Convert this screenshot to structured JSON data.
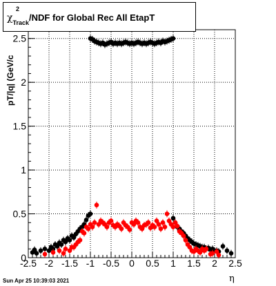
{
  "title_parts": {
    "chi": "χ",
    "sup": "2",
    "sub": "Track",
    "rest": "/NDF for Global Rec All EtapT"
  },
  "footer": {
    "date": "Sun Apr 25 10:39:03 2021"
  },
  "chart_data": {
    "type": "scatter",
    "title": "χ2Track/NDF for Global Rec All EtapT",
    "xlabel": "η",
    "ylabel": "pT/|q| (GeV/c",
    "xlim": [
      -2.5,
      2.5
    ],
    "ylim": [
      0,
      2.6
    ],
    "grid": true,
    "xticks": [
      -2.5,
      -2,
      -1.5,
      -1,
      -0.5,
      0,
      0.5,
      1,
      1.5,
      2,
      2.5
    ],
    "xtick_labels": [
      "-2.5",
      "-2",
      "-1.5",
      "-1",
      "-0.5",
      "0",
      "0.5",
      "1",
      "1.5",
      "2",
      "2.5"
    ],
    "yticks": [
      0,
      0.5,
      1,
      1.5,
      2,
      2.5
    ],
    "ytick_labels": [
      "0",
      "0.5",
      "1",
      "1.5",
      "2",
      "2.5"
    ],
    "series": [
      {
        "color": "#000000",
        "x": [
          -2.4,
          -2.35,
          -2.3,
          -2.2,
          -2.1,
          -2.0,
          -1.95,
          -1.9,
          -1.85,
          -1.8,
          -1.75,
          -1.7,
          -1.65,
          -1.6,
          -1.55,
          -1.5,
          -1.45,
          -1.4,
          -1.35,
          -1.3,
          -1.25,
          -1.2,
          -1.15,
          -1.1,
          -1.05,
          -1.0,
          -1.0,
          -0.95,
          -0.9,
          -0.85,
          -0.8,
          -0.75,
          -0.7,
          -0.65,
          -0.6,
          -0.55,
          -0.5,
          -0.45,
          -0.4,
          -0.35,
          -0.3,
          -0.25,
          -0.2,
          -0.15,
          -0.1,
          -0.05,
          0.0,
          0.05,
          0.1,
          0.15,
          0.2,
          0.25,
          0.3,
          0.35,
          0.4,
          0.45,
          0.5,
          0.55,
          0.6,
          0.65,
          0.7,
          0.75,
          0.8,
          0.85,
          0.9,
          0.95,
          1.0,
          1.0,
          1.05,
          1.1,
          1.15,
          1.2,
          1.25,
          1.3,
          1.35,
          1.4,
          1.45,
          1.5,
          1.55,
          1.6,
          1.65,
          1.7,
          1.75,
          1.8,
          1.85,
          1.9,
          1.95,
          2.0,
          2.05,
          2.1,
          2.2,
          2.3,
          2.4
        ],
        "y": [
          0.06,
          0.09,
          0.05,
          0.08,
          0.1,
          0.08,
          0.12,
          0.1,
          0.15,
          0.13,
          0.17,
          0.15,
          0.2,
          0.18,
          0.22,
          0.2,
          0.25,
          0.23,
          0.27,
          0.3,
          0.33,
          0.35,
          0.38,
          0.43,
          0.48,
          0.5,
          2.5,
          2.49,
          2.47,
          2.46,
          2.45,
          2.44,
          2.45,
          2.43,
          2.44,
          2.45,
          2.46,
          2.44,
          2.45,
          2.44,
          2.45,
          2.44,
          2.45,
          2.46,
          2.45,
          2.44,
          2.45,
          2.44,
          2.45,
          2.46,
          2.45,
          2.44,
          2.45,
          2.44,
          2.45,
          2.46,
          2.45,
          2.44,
          2.45,
          2.46,
          2.45,
          2.47,
          2.46,
          2.47,
          2.48,
          2.49,
          2.5,
          0.45,
          0.4,
          0.35,
          0.33,
          0.3,
          0.28,
          0.25,
          0.22,
          0.2,
          0.18,
          0.16,
          0.15,
          0.14,
          0.13,
          0.12,
          0.12,
          0.1,
          0.11,
          0.09,
          0.1,
          0.08,
          0.08,
          0.07,
          0.13,
          0.08,
          0.05
        ]
      },
      {
        "color": "#ff0000",
        "x": [
          -2.1,
          -1.9,
          -1.75,
          -1.65,
          -1.6,
          -1.5,
          -1.45,
          -1.4,
          -1.35,
          -1.3,
          -1.25,
          -1.2,
          -1.15,
          -1.1,
          -1.05,
          -1.0,
          -0.95,
          -0.9,
          -0.85,
          -0.8,
          -0.75,
          -0.7,
          -0.65,
          -0.6,
          -0.55,
          -0.5,
          -0.45,
          -0.4,
          -0.35,
          -0.3,
          -0.25,
          -0.2,
          -0.15,
          -0.1,
          -0.05,
          0.0,
          0.05,
          0.1,
          0.15,
          0.2,
          0.25,
          0.3,
          0.35,
          0.4,
          0.45,
          0.5,
          0.55,
          0.6,
          0.65,
          0.7,
          0.75,
          0.8,
          0.85,
          0.9,
          0.95,
          1.0,
          1.05,
          1.1,
          1.15,
          1.2,
          1.25,
          1.3,
          1.35,
          1.4,
          1.45,
          1.5,
          1.55,
          1.6,
          1.65,
          1.7,
          1.75,
          1.8,
          1.9,
          1.95,
          2.05,
          2.1
        ],
        "y": [
          0.04,
          0.06,
          0.08,
          0.05,
          0.1,
          0.08,
          0.12,
          0.12,
          0.15,
          0.18,
          0.2,
          0.3,
          0.28,
          0.35,
          0.33,
          0.38,
          0.35,
          0.4,
          0.6,
          0.38,
          0.42,
          0.4,
          0.38,
          0.35,
          0.4,
          0.42,
          0.37,
          0.35,
          0.38,
          0.36,
          0.33,
          0.4,
          0.37,
          0.35,
          0.32,
          0.4,
          0.38,
          0.42,
          0.4,
          0.35,
          0.33,
          0.37,
          0.38,
          0.4,
          0.34,
          0.37,
          0.35,
          0.42,
          0.38,
          0.33,
          0.4,
          0.35,
          0.5,
          0.42,
          0.38,
          0.35,
          0.4,
          0.36,
          0.3,
          0.28,
          0.25,
          0.2,
          0.15,
          0.12,
          0.08,
          0.07,
          0.1,
          0.08,
          0.06,
          0.1,
          0.08,
          0.1,
          0.04,
          0.05,
          0.07,
          0.03
        ]
      }
    ]
  }
}
